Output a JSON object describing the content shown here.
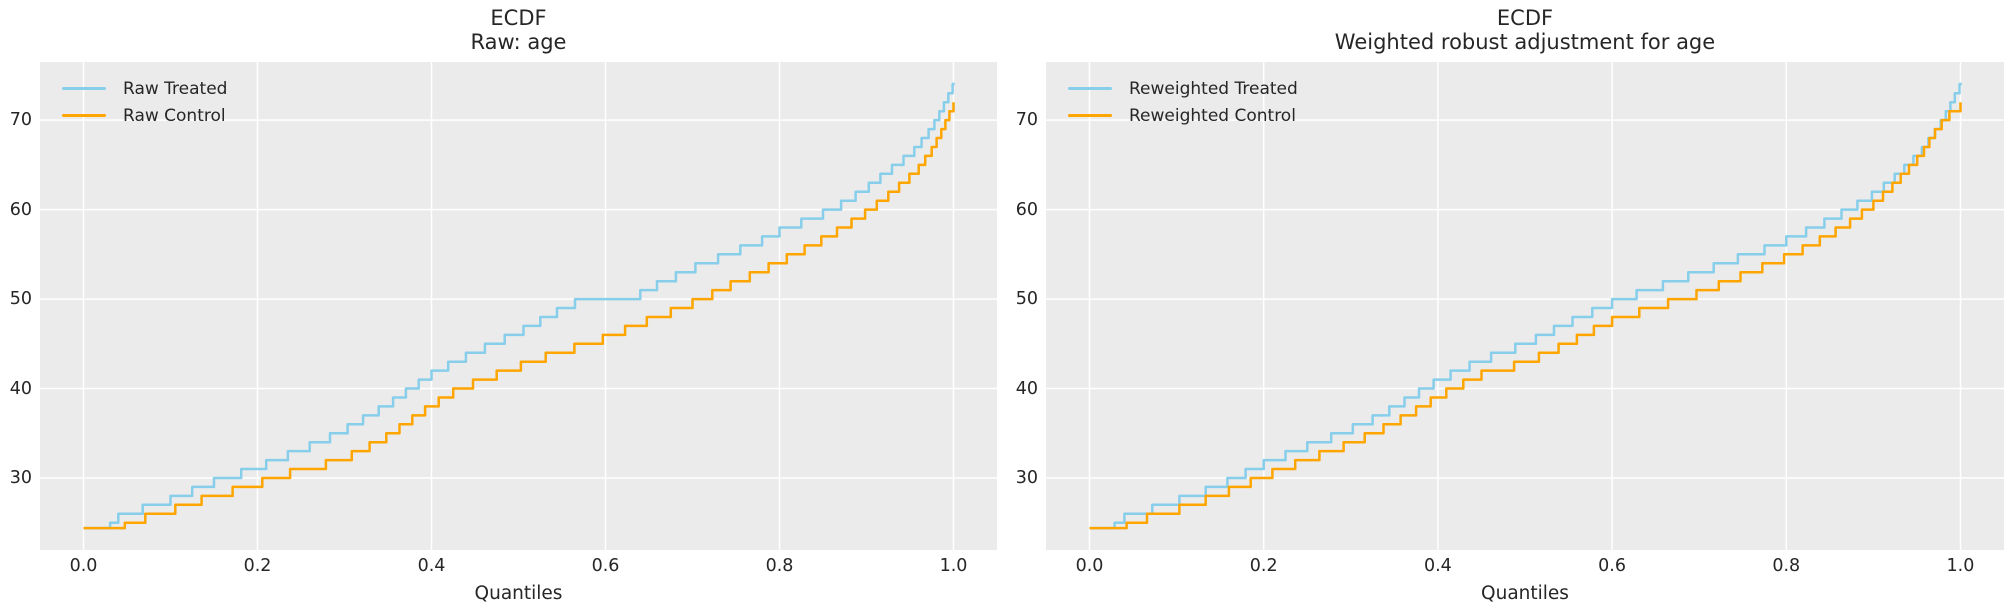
{
  "figure": {
    "background": "#ffffff"
  },
  "styles": {
    "panel_bg": "#ebebeb",
    "grid_color": "#ffffff",
    "text_color": "#262626",
    "treated_color": "#87ceeb",
    "control_color": "#ffa500"
  },
  "chart_data": [
    {
      "type": "line",
      "style": "ecdf-step",
      "title": "ECDF",
      "subtitle": "Raw: age",
      "xlabel": "Quantiles",
      "ylabel": "",
      "xlim": [
        -0.05,
        1.05
      ],
      "ylim": [
        21.95,
        76.5
      ],
      "x_ticks": [
        0.0,
        0.2,
        0.4,
        0.6,
        0.8,
        1.0
      ],
      "x_tick_labels": [
        "0.0",
        "0.2",
        "0.4",
        "0.6",
        "0.8",
        "1.0"
      ],
      "y_ticks": [
        30,
        40,
        50,
        60,
        70
      ],
      "y_tick_labels": [
        "30",
        "40",
        "50",
        "60",
        "70"
      ],
      "grid": true,
      "legend_position": "upper-left",
      "legend": [
        {
          "label": "Raw Treated",
          "color_key": "treated_color"
        },
        {
          "label": "Raw Control",
          "color_key": "control_color"
        }
      ],
      "series": [
        {
          "name": "Raw Treated",
          "color_key": "treated_color",
          "points": [
            [
              0,
              24.4
            ],
            [
              0.025,
              24.4
            ],
            [
              0.04,
              26
            ],
            [
              0.06,
              26.8
            ],
            [
              0.08,
              27.3
            ],
            [
              0.1,
              28
            ],
            [
              0.125,
              29
            ],
            [
              0.15,
              30
            ],
            [
              0.175,
              30.8
            ],
            [
              0.2,
              31.6
            ],
            [
              0.225,
              32.6
            ],
            [
              0.25,
              33.6
            ],
            [
              0.275,
              34.6
            ],
            [
              0.3,
              35.8
            ],
            [
              0.325,
              37.2
            ],
            [
              0.35,
              38.6
            ],
            [
              0.375,
              40.3
            ],
            [
              0.4,
              42
            ],
            [
              0.425,
              43.3
            ],
            [
              0.45,
              44.5
            ],
            [
              0.475,
              45.6
            ],
            [
              0.5,
              46.7
            ],
            [
              0.525,
              48
            ],
            [
              0.55,
              49.3
            ],
            [
              0.565,
              50
            ],
            [
              0.615,
              50
            ],
            [
              0.64,
              51
            ],
            [
              0.665,
              52.3
            ],
            [
              0.69,
              53.4
            ],
            [
              0.71,
              54.3
            ],
            [
              0.735,
              55.2
            ],
            [
              0.76,
              56.2
            ],
            [
              0.78,
              57
            ],
            [
              0.8,
              58
            ],
            [
              0.825,
              59
            ],
            [
              0.85,
              60
            ],
            [
              0.875,
              61.2
            ],
            [
              0.9,
              62.8
            ],
            [
              0.92,
              64.3
            ],
            [
              0.94,
              65.8
            ],
            [
              0.955,
              67
            ],
            [
              0.97,
              68.8
            ],
            [
              0.98,
              70.3
            ],
            [
              0.99,
              72.2
            ],
            [
              0.995,
              73.2
            ],
            [
              1,
              74.2
            ]
          ]
        },
        {
          "name": "Raw Control",
          "color_key": "control_color",
          "points": [
            [
              0,
              24.4
            ],
            [
              0.04,
              24.4
            ],
            [
              0.055,
              25.6
            ],
            [
              0.075,
              26.1
            ],
            [
              0.1,
              26.8
            ],
            [
              0.125,
              27.7
            ],
            [
              0.15,
              28.4
            ],
            [
              0.175,
              29.1
            ],
            [
              0.2,
              29.8
            ],
            [
              0.225,
              30.7
            ],
            [
              0.25,
              31.3
            ],
            [
              0.275,
              31.9
            ],
            [
              0.3,
              32.6
            ],
            [
              0.325,
              33.8
            ],
            [
              0.35,
              35.1
            ],
            [
              0.375,
              36.8
            ],
            [
              0.4,
              38.5
            ],
            [
              0.425,
              40
            ],
            [
              0.45,
              41.1
            ],
            [
              0.475,
              42
            ],
            [
              0.5,
              42.9
            ],
            [
              0.525,
              43.8
            ],
            [
              0.55,
              44.6
            ],
            [
              0.575,
              45.3
            ],
            [
              0.6,
              46.1
            ],
            [
              0.625,
              47.1
            ],
            [
              0.65,
              48.1
            ],
            [
              0.675,
              49
            ],
            [
              0.7,
              50
            ],
            [
              0.725,
              51.1
            ],
            [
              0.75,
              52.3
            ],
            [
              0.775,
              53.4
            ],
            [
              0.8,
              54.6
            ],
            [
              0.825,
              55.8
            ],
            [
              0.85,
              57.1
            ],
            [
              0.875,
              58.5
            ],
            [
              0.9,
              60.1
            ],
            [
              0.925,
              62
            ],
            [
              0.945,
              63.6
            ],
            [
              0.96,
              65
            ],
            [
              0.975,
              67
            ],
            [
              0.985,
              68.8
            ],
            [
              0.993,
              70.5
            ],
            [
              1,
              72
            ]
          ]
        }
      ]
    },
    {
      "type": "line",
      "style": "ecdf-step",
      "title": "ECDF",
      "subtitle": "Weighted robust adjustment for age",
      "xlabel": "Quantiles",
      "ylabel": "",
      "xlim": [
        -0.05,
        1.05
      ],
      "ylim": [
        21.95,
        76.5
      ],
      "x_ticks": [
        0.0,
        0.2,
        0.4,
        0.6,
        0.8,
        1.0
      ],
      "x_tick_labels": [
        "0.0",
        "0.2",
        "0.4",
        "0.6",
        "0.8",
        "1.0"
      ],
      "y_ticks": [
        30,
        40,
        50,
        60,
        70
      ],
      "y_tick_labels": [
        "30",
        "40",
        "50",
        "60",
        "70"
      ],
      "grid": true,
      "legend_position": "upper-left",
      "legend": [
        {
          "label": "Reweighted Treated",
          "color_key": "treated_color"
        },
        {
          "label": "Reweighted Control",
          "color_key": "control_color"
        }
      ],
      "series": [
        {
          "name": "Reweighted Treated",
          "color_key": "treated_color",
          "points": [
            [
              0,
              24.4
            ],
            [
              0.022,
              24.4
            ],
            [
              0.04,
              26
            ],
            [
              0.06,
              26.7
            ],
            [
              0.08,
              27.2
            ],
            [
              0.1,
              27.9
            ],
            [
              0.125,
              28.7
            ],
            [
              0.15,
              29.6
            ],
            [
              0.175,
              30.8
            ],
            [
              0.2,
              32
            ],
            [
              0.225,
              33
            ],
            [
              0.25,
              34
            ],
            [
              0.275,
              34.9
            ],
            [
              0.3,
              35.9
            ],
            [
              0.325,
              37
            ],
            [
              0.35,
              38.3
            ],
            [
              0.375,
              39.8
            ],
            [
              0.4,
              41.3
            ],
            [
              0.425,
              42.5
            ],
            [
              0.45,
              43.6
            ],
            [
              0.475,
              44.5
            ],
            [
              0.5,
              45.4
            ],
            [
              0.525,
              46.6
            ],
            [
              0.55,
              47.8
            ],
            [
              0.575,
              48.9
            ],
            [
              0.6,
              50
            ],
            [
              0.625,
              50.9
            ],
            [
              0.65,
              51.7
            ],
            [
              0.675,
              52.6
            ],
            [
              0.7,
              53.4
            ],
            [
              0.725,
              54.3
            ],
            [
              0.75,
              55.2
            ],
            [
              0.775,
              56
            ],
            [
              0.8,
              57
            ],
            [
              0.825,
              58.1
            ],
            [
              0.85,
              59.3
            ],
            [
              0.875,
              60.6
            ],
            [
              0.9,
              62.1
            ],
            [
              0.92,
              63.6
            ],
            [
              0.94,
              65.4
            ],
            [
              0.955,
              66.9
            ],
            [
              0.97,
              68.9
            ],
            [
              0.98,
              70.4
            ],
            [
              0.99,
              72.3
            ],
            [
              0.995,
              73.3
            ],
            [
              1,
              74.2
            ]
          ]
        },
        {
          "name": "Reweighted Control",
          "color_key": "control_color",
          "points": [
            [
              0,
              24.4
            ],
            [
              0.035,
              24.4
            ],
            [
              0.05,
              25.6
            ],
            [
              0.07,
              26.1
            ],
            [
              0.1,
              26.9
            ],
            [
              0.125,
              27.7
            ],
            [
              0.15,
              28.6
            ],
            [
              0.175,
              29.6
            ],
            [
              0.2,
              30.6
            ],
            [
              0.225,
              31.6
            ],
            [
              0.25,
              32.5
            ],
            [
              0.275,
              33.4
            ],
            [
              0.3,
              34.3
            ],
            [
              0.325,
              35.4
            ],
            [
              0.35,
              36.6
            ],
            [
              0.375,
              38
            ],
            [
              0.4,
              39.5
            ],
            [
              0.425,
              40.8
            ],
            [
              0.45,
              42
            ],
            [
              0.475,
              42.7
            ],
            [
              0.5,
              43.3
            ],
            [
              0.525,
              44.4
            ],
            [
              0.55,
              45.5
            ],
            [
              0.575,
              46.8
            ],
            [
              0.6,
              48
            ],
            [
              0.625,
              48.8
            ],
            [
              0.65,
              49.6
            ],
            [
              0.675,
              50.3
            ],
            [
              0.7,
              51.1
            ],
            [
              0.725,
              52.1
            ],
            [
              0.75,
              53.1
            ],
            [
              0.775,
              54.1
            ],
            [
              0.8,
              55.1
            ],
            [
              0.825,
              56.3
            ],
            [
              0.85,
              57.6
            ],
            [
              0.875,
              59.1
            ],
            [
              0.9,
              61
            ],
            [
              0.92,
              62.8
            ],
            [
              0.94,
              64.9
            ],
            [
              0.955,
              66.5
            ],
            [
              0.97,
              68.9
            ],
            [
              0.98,
              70.2
            ],
            [
              0.99,
              71.3
            ],
            [
              1,
              72
            ]
          ]
        }
      ]
    }
  ]
}
